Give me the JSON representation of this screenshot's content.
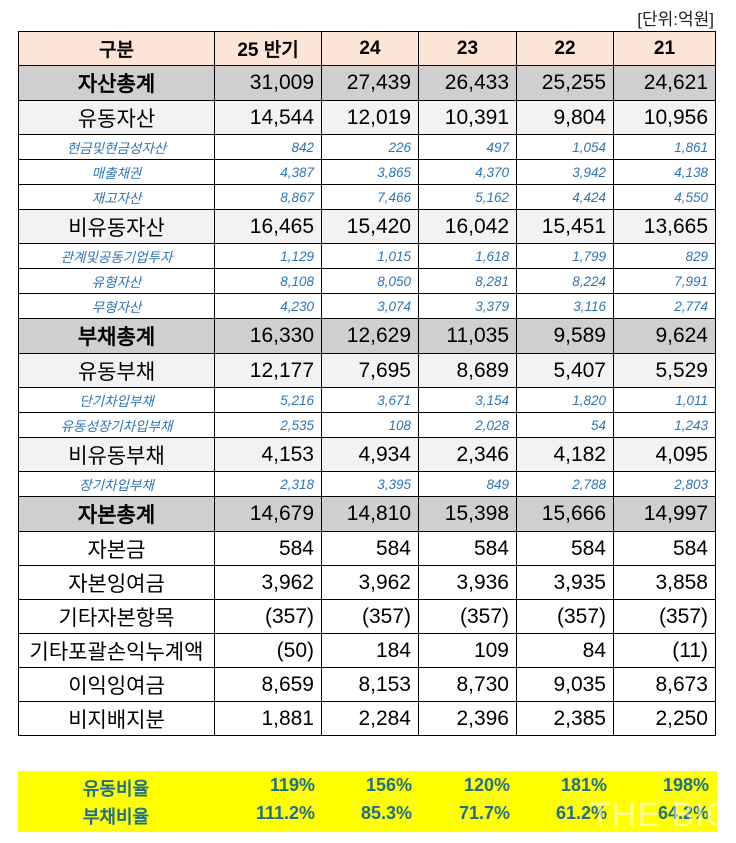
{
  "unit_label": "[단위:억원]",
  "header": [
    "구분",
    "25 반기",
    "24",
    "23",
    "22",
    "21"
  ],
  "rows": [
    {
      "type": "total",
      "label": "자산총계",
      "values": [
        "31,009",
        "27,439",
        "26,433",
        "25,255",
        "24,621"
      ]
    },
    {
      "type": "sub",
      "label": "유동자산",
      "values": [
        "14,544",
        "12,019",
        "10,391",
        "9,804",
        "10,956"
      ]
    },
    {
      "type": "detail",
      "label": "현금및현금성자산",
      "values": [
        "842",
        "226",
        "497",
        "1,054",
        "1,861"
      ]
    },
    {
      "type": "detail",
      "label": "매출채권",
      "values": [
        "4,387",
        "3,865",
        "4,370",
        "3,942",
        "4,138"
      ]
    },
    {
      "type": "detail",
      "label": "재고자산",
      "values": [
        "8,867",
        "7,466",
        "5,162",
        "4,424",
        "4,550"
      ]
    },
    {
      "type": "sub",
      "label": "비유동자산",
      "values": [
        "16,465",
        "15,420",
        "16,042",
        "15,451",
        "13,665"
      ]
    },
    {
      "type": "detail",
      "label": "관계및공동기업투자",
      "values": [
        "1,129",
        "1,015",
        "1,618",
        "1,799",
        "829"
      ]
    },
    {
      "type": "detail",
      "label": "유형자산",
      "values": [
        "8,108",
        "8,050",
        "8,281",
        "8,224",
        "7,991"
      ]
    },
    {
      "type": "detail",
      "label": "무형자산",
      "values": [
        "4,230",
        "3,074",
        "3,379",
        "3,116",
        "2,774"
      ]
    },
    {
      "type": "total",
      "label": "부채총계",
      "values": [
        "16,330",
        "12,629",
        "11,035",
        "9,589",
        "9,624"
      ]
    },
    {
      "type": "sub",
      "label": "유동부채",
      "values": [
        "12,177",
        "7,695",
        "8,689",
        "5,407",
        "5,529"
      ]
    },
    {
      "type": "detail",
      "label": "단기차입부채",
      "values": [
        "5,216",
        "3,671",
        "3,154",
        "1,820",
        "1,011"
      ]
    },
    {
      "type": "detail",
      "label": "유동성장기차입부채",
      "values": [
        "2,535",
        "108",
        "2,028",
        "54",
        "1,243"
      ]
    },
    {
      "type": "sub",
      "label": "비유동부채",
      "values": [
        "4,153",
        "4,934",
        "2,346",
        "4,182",
        "4,095"
      ]
    },
    {
      "type": "detail",
      "label": "장기차입부채",
      "values": [
        "2,318",
        "3,395",
        "849",
        "2,788",
        "2,803"
      ]
    },
    {
      "type": "total",
      "label": "자본총계",
      "values": [
        "14,679",
        "14,810",
        "15,398",
        "15,666",
        "14,997"
      ]
    },
    {
      "type": "eq",
      "label": "자본금",
      "values": [
        "584",
        "584",
        "584",
        "584",
        "584"
      ]
    },
    {
      "type": "eq",
      "label": "자본잉여금",
      "values": [
        "3,962",
        "3,962",
        "3,936",
        "3,935",
        "3,858"
      ]
    },
    {
      "type": "eq",
      "label": "기타자본항목",
      "values": [
        "(357)",
        "(357)",
        "(357)",
        "(357)",
        "(357)"
      ]
    },
    {
      "type": "eq",
      "label": "기타포괄손익누계액",
      "values": [
        "(50)",
        "184",
        "109",
        "84",
        "(11)"
      ]
    },
    {
      "type": "eq",
      "label": "이익잉여금",
      "values": [
        "8,659",
        "8,153",
        "8,730",
        "9,035",
        "8,673"
      ]
    },
    {
      "type": "eq",
      "label": "비지배지분",
      "values": [
        "1,881",
        "2,284",
        "2,396",
        "2,385",
        "2,250"
      ]
    }
  ],
  "ratios": [
    {
      "label": "유동비율",
      "values": [
        "119%",
        "156%",
        "120%",
        "181%",
        "198%"
      ]
    },
    {
      "label": "부채비율",
      "values": [
        "111.2%",
        "85.3%",
        "71.7%",
        "61.2%",
        "64.2%"
      ]
    }
  ],
  "watermark": "THE BIO",
  "colors": {
    "header_bg": "#FCE4D6",
    "total_bg": "#D0CECE",
    "sub_bg": "#F2F2F2",
    "detail_text": "#2E75B6",
    "ratio_bg": "#FFFF00",
    "ratio_text": "#1F6F8B"
  }
}
